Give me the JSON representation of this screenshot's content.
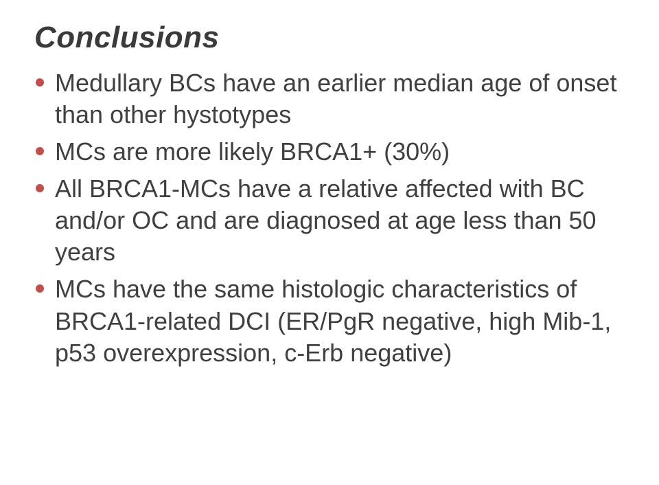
{
  "title": "Conclusions",
  "title_color": "#3a3a3a",
  "title_fontsize": 44,
  "title_italic": true,
  "title_bold": true,
  "body_fontsize": 36,
  "body_color": "#404040",
  "bullet_color": "#c0504d",
  "bullet_size": 12,
  "background_color": "#ffffff",
  "font_family": "Verdana",
  "bullets": [
    "Medullary BCs have an earlier median age of onset than other hystotypes",
    "MCs  are more likely BRCA1+ (30%)",
    "All BRCA1-MCs have a relative affected with BC and/or OC and are diagnosed at age less than 50 years",
    "MCs have the same histologic characteristics of BRCA1-related DCI (ER/PgR negative, high Mib-1, p53 overexpression, c-Erb negative)"
  ]
}
